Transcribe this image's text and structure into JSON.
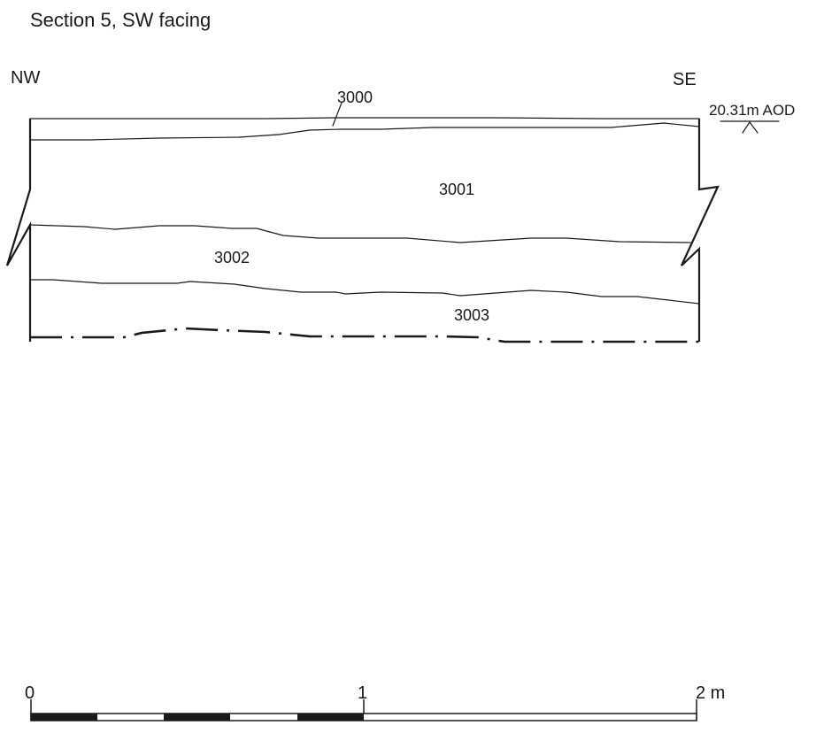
{
  "title": "Section 5, SW facing",
  "orientation": {
    "left": "NW",
    "right": "SE"
  },
  "contexts": [
    "3000",
    "3001",
    "3002",
    "3003"
  ],
  "datum": {
    "label": "20.31m AOD"
  },
  "scale_bar": {
    "labels": [
      "0",
      "1",
      "2 m"
    ],
    "unit": "m",
    "max": 2
  }
}
